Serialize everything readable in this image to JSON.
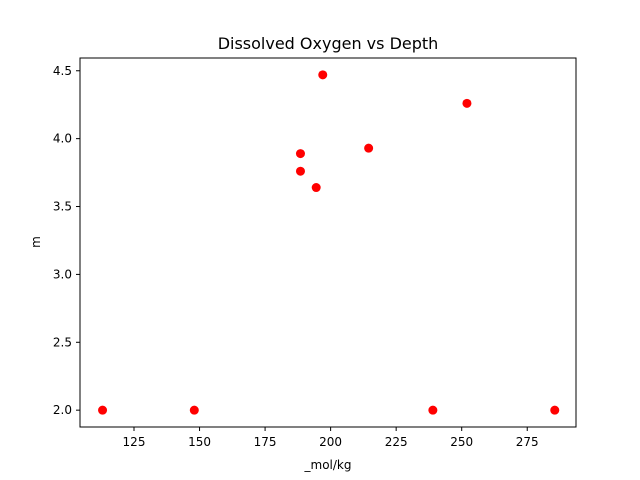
{
  "chart_data": {
    "type": "scatter",
    "title": "Dissolved Oxygen vs Depth",
    "xlabel": "_mol/kg",
    "ylabel": "m",
    "xlim": [
      104.4,
      293.6
    ],
    "ylim": [
      1.876,
      4.594
    ],
    "xticks": [
      125,
      150,
      175,
      200,
      225,
      250,
      275
    ],
    "xtick_labels": [
      "125",
      "150",
      "175",
      "200",
      "225",
      "250",
      "275"
    ],
    "yticks": [
      2.0,
      2.5,
      3.0,
      3.5,
      4.0,
      4.5
    ],
    "ytick_labels": [
      "2.0",
      "2.5",
      "3.0",
      "3.5",
      "4.0",
      "4.5"
    ],
    "grid": false,
    "marker_color": "#ff0000",
    "points": [
      {
        "x": 113,
        "y": 2.0
      },
      {
        "x": 148,
        "y": 2.0
      },
      {
        "x": 188.5,
        "y": 3.89
      },
      {
        "x": 188.5,
        "y": 3.76
      },
      {
        "x": 194.5,
        "y": 3.64
      },
      {
        "x": 197,
        "y": 4.47
      },
      {
        "x": 214.5,
        "y": 3.93
      },
      {
        "x": 239,
        "y": 2.0
      },
      {
        "x": 252,
        "y": 4.26
      },
      {
        "x": 285.5,
        "y": 2.0
      }
    ]
  }
}
